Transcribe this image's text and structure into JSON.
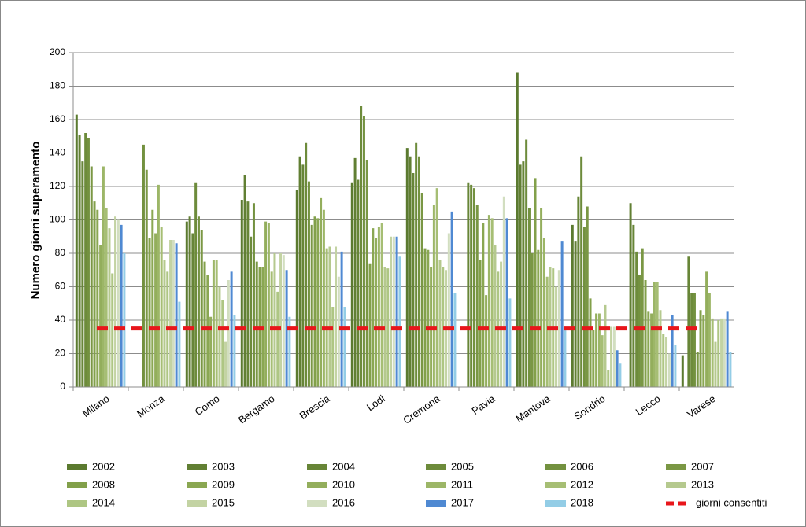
{
  "chart_data": {
    "type": "bar",
    "y_label": "Numero giorni superamento",
    "categories": [
      "Milano",
      "Monza",
      "Como",
      "Bergamo",
      "Brescia",
      "Lodi",
      "Cremona",
      "Pavia",
      "Mantova",
      "Sondrio",
      "Lecco",
      "Varese"
    ],
    "ylim": [
      0,
      200
    ],
    "yticks": [
      0,
      20,
      40,
      60,
      80,
      100,
      120,
      140,
      160,
      180,
      200
    ],
    "grid": true,
    "series": [
      {
        "name": "2002",
        "color": "#5b7a2f",
        "values": [
          163,
          null,
          99,
          112,
          118,
          122,
          143,
          null,
          188,
          97,
          null,
          19
        ]
      },
      {
        "name": "2003",
        "color": "#617f33",
        "values": [
          151,
          null,
          102,
          127,
          138,
          137,
          138,
          null,
          133,
          87,
          110,
          null
        ]
      },
      {
        "name": "2004",
        "color": "#678537",
        "values": [
          135,
          null,
          92,
          111,
          133,
          124,
          128,
          122,
          135,
          114,
          97,
          78
        ]
      },
      {
        "name": "2005",
        "color": "#6d8b3b",
        "values": [
          152,
          null,
          122,
          90,
          146,
          168,
          146,
          121,
          148,
          138,
          81,
          56
        ]
      },
      {
        "name": "2006",
        "color": "#73913f",
        "values": [
          149,
          145,
          102,
          110,
          123,
          162,
          138,
          119,
          107,
          96,
          67,
          56
        ]
      },
      {
        "name": "2007",
        "color": "#7a9744",
        "values": [
          132,
          130,
          94,
          75,
          97,
          136,
          116,
          109,
          80,
          108,
          83,
          21
        ]
      },
      {
        "name": "2008",
        "color": "#82a04a",
        "values": [
          111,
          89,
          75,
          72,
          102,
          74,
          83,
          76,
          125,
          53,
          64,
          46
        ]
      },
      {
        "name": "2009",
        "color": "#8aa752",
        "values": [
          106,
          106,
          67,
          72,
          101,
          95,
          82,
          98,
          82,
          34,
          45,
          43
        ]
      },
      {
        "name": "2010",
        "color": "#93ae5c",
        "values": [
          85,
          92,
          42,
          99,
          113,
          89,
          72,
          55,
          107,
          44,
          44,
          69
        ]
      },
      {
        "name": "2011",
        "color": "#9cb667",
        "values": [
          132,
          121,
          76,
          98,
          106,
          96,
          109,
          103,
          89,
          44,
          63,
          56
        ]
      },
      {
        "name": "2012",
        "color": "#a6be74",
        "values": [
          107,
          96,
          76,
          69,
          83,
          98,
          119,
          101,
          66,
          31,
          63,
          41
        ]
      },
      {
        "name": "2013",
        "color": "#b5c98e",
        "values": [
          95,
          76,
          60,
          80,
          84,
          72,
          76,
          85,
          72,
          49,
          46,
          27
        ]
      },
      {
        "name": "2014",
        "color": "#aec683",
        "values": [
          68,
          69,
          52,
          57,
          48,
          71,
          72,
          69,
          71,
          10,
          32,
          40
        ]
      },
      {
        "name": "2015",
        "color": "#c3d3a3",
        "values": [
          102,
          88,
          27,
          80,
          84,
          90,
          70,
          75,
          60,
          36,
          30,
          41
        ]
      },
      {
        "name": "2016",
        "color": "#d2dec0",
        "values": [
          100,
          88,
          64,
          79,
          66,
          90,
          92,
          114,
          70,
          36,
          20,
          41
        ]
      },
      {
        "name": "2017",
        "color": "#4f89d2",
        "values": [
          97,
          86,
          69,
          70,
          81,
          90,
          105,
          101,
          87,
          22,
          43,
          45
        ]
      },
      {
        "name": "2018",
        "color": "#93cde6",
        "values": [
          80,
          51,
          43,
          42,
          48,
          78,
          56,
          53,
          35,
          14,
          25,
          21
        ]
      }
    ],
    "reference_line": {
      "name": "giorni consentiti",
      "value": 35,
      "color": "#e8161b"
    }
  }
}
